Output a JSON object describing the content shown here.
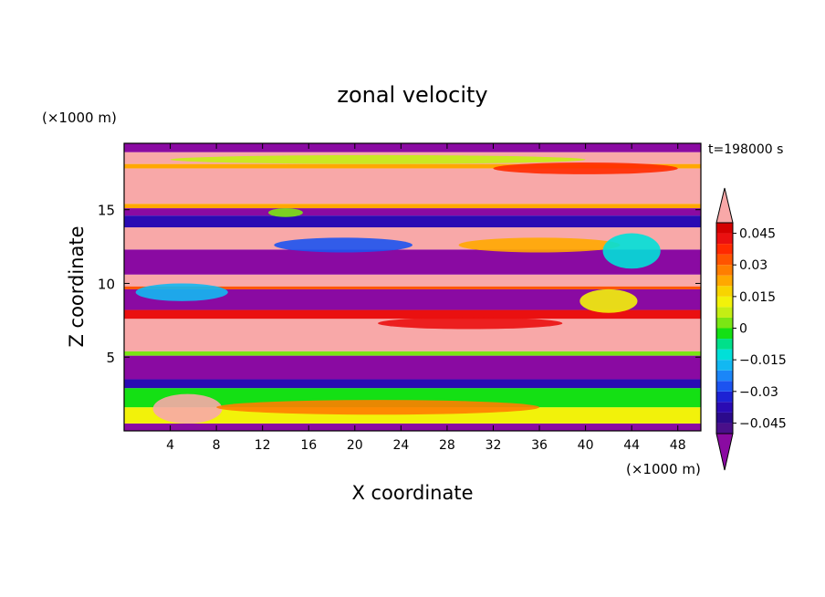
{
  "chart_data": {
    "type": "heatmap",
    "title": "zonal velocity",
    "xlabel": "X coordinate",
    "ylabel": "Z coordinate",
    "x_unit": "(×1000 m)",
    "y_unit": "(×1000 m)",
    "time_label": "t=198000 s",
    "xlim": [
      0,
      50
    ],
    "ylim": [
      0,
      19.5
    ],
    "x_ticks": [
      4,
      8,
      12,
      16,
      20,
      24,
      28,
      32,
      36,
      40,
      44,
      48
    ],
    "y_ticks": [
      5,
      10,
      15
    ],
    "colorbar": {
      "levels": [
        -0.05,
        -0.045,
        -0.04,
        -0.035,
        -0.03,
        -0.025,
        -0.02,
        -0.015,
        -0.01,
        -0.005,
        0,
        0.005,
        0.01,
        0.015,
        0.02,
        0.025,
        0.03,
        0.035,
        0.04,
        0.045,
        0.05
      ],
      "colors": [
        "#4a0f8a",
        "#2b0a8c",
        "#2a0bb3",
        "#1d22d4",
        "#1c53f0",
        "#1b86f8",
        "#12b8f2",
        "#00e0d8",
        "#00e08a",
        "#14e014",
        "#7ae614",
        "#c4ee14",
        "#f2f20a",
        "#f8d400",
        "#ffa800",
        "#ff7e00",
        "#ff5400",
        "#ff2a00",
        "#ea1010",
        "#d40000"
      ],
      "under_color": "#8a0aa2",
      "over_color": "#f8a8a8",
      "tick_labels": [
        "0.045",
        "0.03",
        "0.015",
        "0",
        "−0.015",
        "−0.03",
        "−0.045"
      ],
      "tick_values": [
        0.045,
        0.03,
        0.015,
        0,
        -0.015,
        -0.03,
        -0.045
      ]
    },
    "bands": [
      {
        "z": [
          0.0,
          0.5
        ],
        "value": -0.06
      },
      {
        "z": [
          0.5,
          1.6
        ],
        "value": 0.01
      },
      {
        "z": [
          1.6,
          2.9
        ],
        "value": -0.005
      },
      {
        "z": [
          2.9,
          3.5
        ],
        "value": -0.04
      },
      {
        "z": [
          3.5,
          5.1
        ],
        "value": -0.06
      },
      {
        "z": [
          5.1,
          5.4
        ],
        "value": 0.0
      },
      {
        "z": [
          5.4,
          7.6
        ],
        "value": 0.06
      },
      {
        "z": [
          7.6,
          8.2
        ],
        "value": 0.04
      },
      {
        "z": [
          8.2,
          9.6
        ],
        "value": -0.06
      },
      {
        "z": [
          9.6,
          9.8
        ],
        "value": 0.03
      },
      {
        "z": [
          9.8,
          10.6
        ],
        "value": 0.06
      },
      {
        "z": [
          10.6,
          12.3
        ],
        "value": -0.06
      },
      {
        "z": [
          12.3,
          13.8
        ],
        "value": 0.06
      },
      {
        "z": [
          13.8,
          14.6
        ],
        "value": -0.04
      },
      {
        "z": [
          14.6,
          15.1
        ],
        "value": -0.06
      },
      {
        "z": [
          15.1,
          15.4
        ],
        "value": 0.02
      },
      {
        "z": [
          15.4,
          17.8
        ],
        "value": 0.06
      },
      {
        "z": [
          17.8,
          18.1
        ],
        "value": 0.02
      },
      {
        "z": [
          18.1,
          18.9
        ],
        "value": 0.06
      },
      {
        "z": [
          18.9,
          19.5
        ],
        "value": -0.06
      }
    ],
    "features": [
      {
        "kind": "blob",
        "x": 5.5,
        "z": 1.5,
        "rx": 3.0,
        "rz": 1.0,
        "value": 0.06
      },
      {
        "kind": "blob",
        "x": 22,
        "z": 1.6,
        "rx": 14.0,
        "rz": 0.5,
        "value": 0.025
      },
      {
        "kind": "blob",
        "x": 19,
        "z": 12.6,
        "rx": 6.0,
        "rz": 0.5,
        "value": -0.03
      },
      {
        "kind": "blob",
        "x": 36,
        "z": 12.6,
        "rx": 7.0,
        "rz": 0.5,
        "value": 0.02
      },
      {
        "kind": "blob",
        "x": 44,
        "z": 12.2,
        "rx": 2.5,
        "rz": 1.2,
        "value": -0.015
      },
      {
        "kind": "blob",
        "x": 30,
        "z": 7.3,
        "rx": 8.0,
        "rz": 0.4,
        "value": 0.04
      },
      {
        "kind": "blob",
        "x": 42,
        "z": 8.8,
        "rx": 2.5,
        "rz": 0.8,
        "value": 0.01
      },
      {
        "kind": "blob",
        "x": 5,
        "z": 9.4,
        "rx": 4.0,
        "rz": 0.6,
        "value": -0.02
      },
      {
        "kind": "blob",
        "x": 40,
        "z": 17.8,
        "rx": 8.0,
        "rz": 0.4,
        "value": 0.035
      },
      {
        "kind": "blob",
        "x": 22,
        "z": 18.4,
        "rx": 18.0,
        "rz": 0.3,
        "value": 0.005
      },
      {
        "kind": "blob",
        "x": 14,
        "z": 14.8,
        "rx": 1.5,
        "rz": 0.3,
        "value": 0.0
      }
    ]
  }
}
